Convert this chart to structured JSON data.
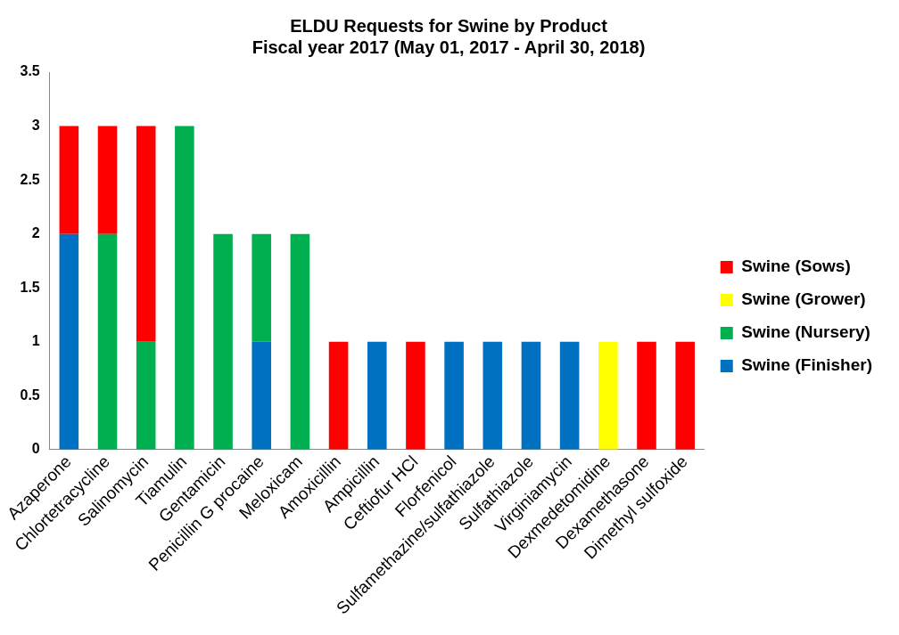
{
  "chart_data": {
    "type": "bar",
    "title": "ELDU Requests for Swine by Product",
    "subtitle": "Fiscal year 2017 (May 01, 2017 - April 30, 2018)",
    "categories": [
      "Azaperone",
      "Chlortetracycline",
      "Salinomycin",
      "Tiamulin",
      "Gentamicin",
      "Penicillin G procaine",
      "Meloxicam",
      "Amoxicillin",
      "Ampicillin",
      "Ceftiofur HCl",
      "Florfenicol",
      "Sulfamethazine/sulfathiazole",
      "Sulfathiazole",
      "Virginiamycin",
      "Dexmedetomidine",
      "Dexamethasone",
      "Dimethyl sulfoxide"
    ],
    "series": [
      {
        "name": "Swine (Finisher)",
        "color": "#0070c0",
        "values": [
          2,
          0,
          0,
          0,
          0,
          1,
          0,
          0,
          1,
          0,
          1,
          1,
          1,
          1,
          0,
          0,
          0
        ]
      },
      {
        "name": "Swine (Nursery)",
        "color": "#00b050",
        "values": [
          0,
          2,
          1,
          3,
          2,
          1,
          2,
          0,
          0,
          0,
          0,
          0,
          0,
          0,
          0,
          0,
          0
        ]
      },
      {
        "name": "Swine (Grower)",
        "color": "#ffff00",
        "values": [
          0,
          0,
          0,
          0,
          0,
          0,
          0,
          0,
          0,
          0,
          0,
          0,
          0,
          0,
          1,
          0,
          0
        ]
      },
      {
        "name": "Swine (Sows)",
        "color": "#ff0000",
        "values": [
          1,
          1,
          2,
          0,
          0,
          0,
          0,
          1,
          0,
          1,
          0,
          0,
          0,
          0,
          0,
          1,
          1
        ]
      }
    ],
    "stacked": true,
    "ylim": [
      0,
      3.5
    ],
    "yticks": [
      0,
      0.5,
      1,
      1.5,
      2,
      2.5,
      3,
      3.5
    ],
    "grid": false,
    "legend": "right"
  }
}
